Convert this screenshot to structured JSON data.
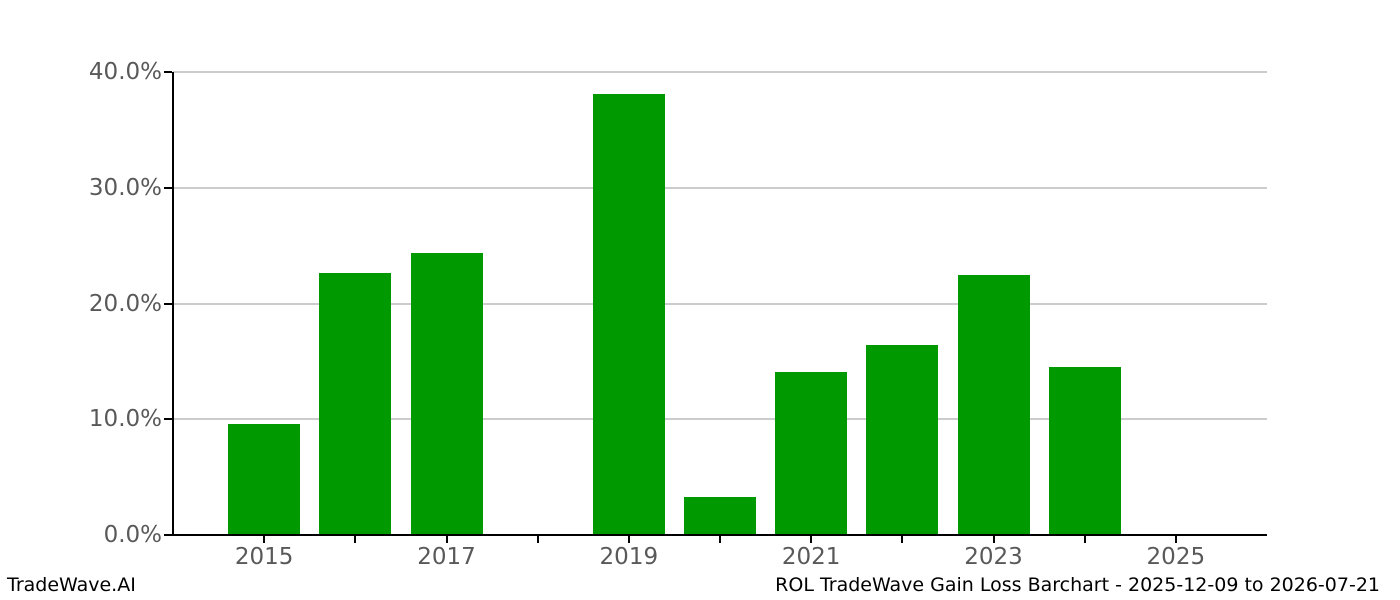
{
  "chart_data": {
    "type": "bar",
    "title": "ROL TradeWave Gain Loss Barchart - 2025-12-09 to 2026-07-21",
    "xlabel": "",
    "ylabel": "",
    "x": [
      2015,
      2016,
      2017,
      2018,
      2019,
      2020,
      2021,
      2022,
      2023,
      2024,
      2025
    ],
    "values": [
      9.6,
      22.6,
      24.4,
      0,
      38.1,
      3.3,
      14.1,
      16.4,
      22.5,
      14.5,
      0
    ],
    "unit": "percent",
    "ylim": [
      0,
      40
    ],
    "xlim": [
      2014,
      2026
    ],
    "yticks": [
      0,
      10,
      20,
      30,
      40
    ],
    "ytick_labels": [
      "0.0%",
      "10.0%",
      "20.0%",
      "30.0%",
      "40.0%"
    ],
    "xticks_labeled": [
      2015,
      2017,
      2019,
      2021,
      2023,
      2025
    ],
    "grid": "horizontal",
    "legend": "none",
    "bar_color": "#009900"
  },
  "footer": {
    "left_text": "TradeWave.AI",
    "right_text": "ROL TradeWave Gain Loss Barchart - 2025-12-09 to 2026-07-21"
  },
  "colors": {
    "background": "#ffffff",
    "bar": "#009900",
    "grid": "#cccccc",
    "axis": "#000000",
    "tick_label": "#595959",
    "footer_text": "#000000"
  }
}
